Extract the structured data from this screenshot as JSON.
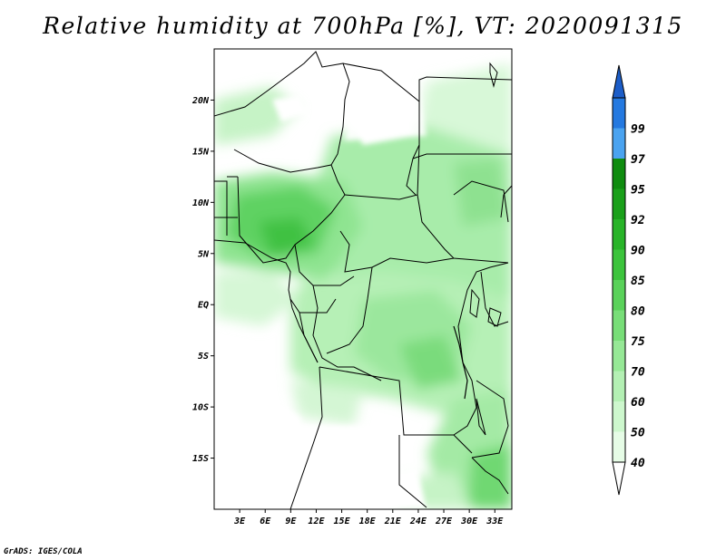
{
  "title": "Relative humidity at 700hPa [%], VT: 2020091315",
  "footer": "GrADS: IGES/COLA",
  "map": {
    "lon_range": [
      0,
      35
    ],
    "lat_range": [
      -20,
      25
    ],
    "lat_ticks": [
      {
        "lat": 20,
        "label": "20N"
      },
      {
        "lat": 15,
        "label": "15N"
      },
      {
        "lat": 10,
        "label": "10N"
      },
      {
        "lat": 5,
        "label": "5N"
      },
      {
        "lat": 0,
        "label": "EQ"
      },
      {
        "lat": -5,
        "label": "5S"
      },
      {
        "lat": -10,
        "label": "10S"
      },
      {
        "lat": -15,
        "label": "15S"
      }
    ],
    "lon_ticks": [
      {
        "lon": 3,
        "label": "3E"
      },
      {
        "lon": 6,
        "label": "6E"
      },
      {
        "lon": 9,
        "label": "9E"
      },
      {
        "lon": 12,
        "label": "12E"
      },
      {
        "lon": 15,
        "label": "15E"
      },
      {
        "lon": 18,
        "label": "18E"
      },
      {
        "lon": 21,
        "label": "21E"
      },
      {
        "lon": 24,
        "label": "24E"
      },
      {
        "lon": 27,
        "label": "27E"
      },
      {
        "lon": 30,
        "label": "30E"
      },
      {
        "lon": 33,
        "label": "33E"
      }
    ]
  },
  "colorbar": {
    "levels": [
      {
        "label": "40",
        "color": "#e6fce6"
      },
      {
        "label": "50",
        "color": "#cdf7cd"
      },
      {
        "label": "60",
        "color": "#b4f0b4"
      },
      {
        "label": "70",
        "color": "#96e896"
      },
      {
        "label": "75",
        "color": "#78de78"
      },
      {
        "label": "80",
        "color": "#5ad25a"
      },
      {
        "label": "85",
        "color": "#3cc43c"
      },
      {
        "label": "90",
        "color": "#28b428"
      },
      {
        "label": "92",
        "color": "#1aa01a"
      },
      {
        "label": "95",
        "color": "#0f8c0f"
      },
      {
        "label": "97",
        "color": "#4aa3f0"
      },
      {
        "label": "99",
        "color": "#2479e0"
      }
    ],
    "under_color": "#ffffff",
    "over_color": "#1c5dc8"
  }
}
